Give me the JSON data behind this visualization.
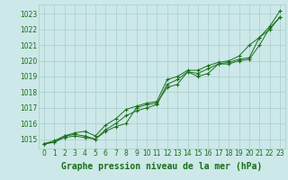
{
  "title": "Graphe pression niveau de la mer (hPa)",
  "x": [
    0,
    1,
    2,
    3,
    4,
    5,
    6,
    7,
    8,
    9,
    10,
    11,
    12,
    13,
    14,
    15,
    16,
    17,
    18,
    19,
    20,
    21,
    22,
    23
  ],
  "line1": [
    1014.7,
    1014.8,
    1015.1,
    1015.2,
    1015.1,
    1015.0,
    1015.5,
    1015.8,
    1016.0,
    1017.0,
    1017.2,
    1017.3,
    1018.3,
    1018.5,
    1019.3,
    1019.0,
    1019.2,
    1019.8,
    1019.8,
    1020.0,
    1020.1,
    1021.0,
    1022.1,
    1022.8
  ],
  "line2": [
    1014.7,
    1014.8,
    1015.2,
    1015.3,
    1015.2,
    1015.0,
    1015.6,
    1016.0,
    1016.5,
    1016.8,
    1017.0,
    1017.2,
    1018.5,
    1018.8,
    1019.3,
    1019.2,
    1019.5,
    1019.8,
    1019.9,
    1020.1,
    1020.2,
    1021.5,
    1022.0,
    1022.8
  ],
  "line3": [
    1014.7,
    1014.9,
    1015.2,
    1015.4,
    1015.5,
    1015.2,
    1015.9,
    1016.3,
    1016.9,
    1017.1,
    1017.3,
    1017.4,
    1018.8,
    1019.0,
    1019.4,
    1019.4,
    1019.7,
    1019.9,
    1020.0,
    1020.3,
    1021.0,
    1021.5,
    1022.2,
    1023.2
  ],
  "line_color": "#1a6e1a",
  "bg_color": "#cce8e8",
  "grid_color": "#aacccc",
  "title_color": "#1a6e1a",
  "ylim_min": 1014.4,
  "ylim_max": 1023.6,
  "yticks": [
    1015,
    1016,
    1017,
    1018,
    1019,
    1020,
    1021,
    1022,
    1023
  ],
  "xticks": [
    0,
    1,
    2,
    3,
    4,
    5,
    6,
    7,
    8,
    9,
    10,
    11,
    12,
    13,
    14,
    15,
    16,
    17,
    18,
    19,
    20,
    21,
    22,
    23
  ],
  "title_fontsize": 7.0,
  "tick_fontsize": 5.5
}
